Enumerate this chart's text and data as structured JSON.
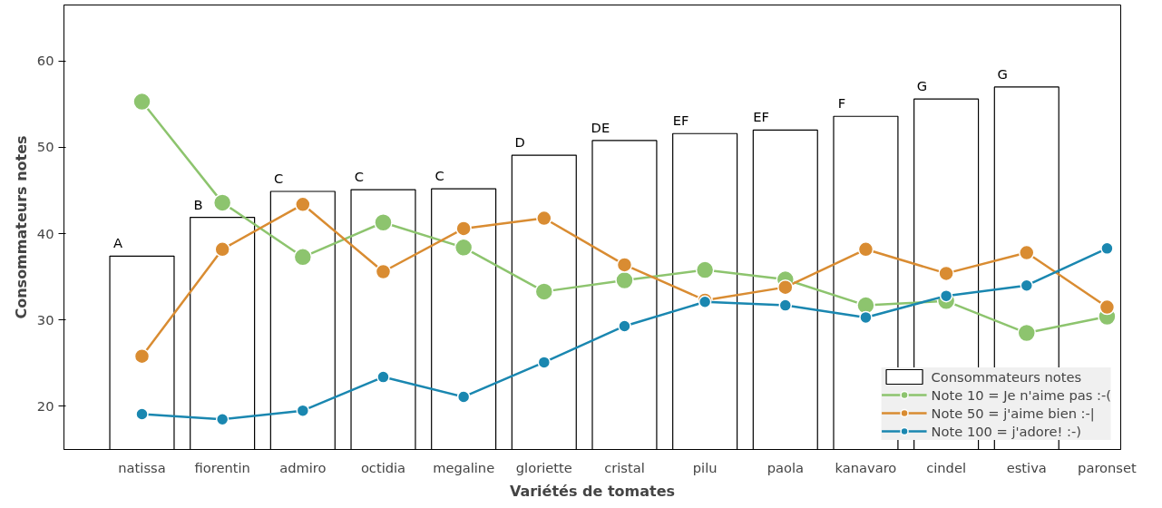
{
  "chart_data": {
    "type": "bar",
    "xlabel": "Variétés de tomates",
    "ylabel": "Consommateurs notes",
    "categories": [
      "natissa",
      "fiorentin",
      "admiro",
      "octidia",
      "megaline",
      "gloriette",
      "cristal",
      "pilu",
      "paola",
      "kanavaro",
      "cindel",
      "estiva",
      "paronset"
    ],
    "ylim": [
      15,
      66.5
    ],
    "yticks": [
      20,
      30,
      40,
      50,
      60
    ],
    "grid": false,
    "legend": "bottom right",
    "series": [
      {
        "name": "Consommateurs notes",
        "color": "#ffffff",
        "values": [
          37.4,
          41.9,
          44.9,
          45.1,
          45.2,
          49.1,
          50.8,
          51.6,
          52.0,
          53.6,
          55.6,
          57.0,
          null
        ]
      },
      {
        "name": "Note 10 = Je n'aime pas :-(",
        "type": "line",
        "marker": "circle",
        "color": "#8dc46e",
        "values": [
          55.3,
          43.6,
          37.3,
          41.3,
          38.4,
          33.3,
          34.6,
          35.8,
          34.7,
          31.7,
          32.2,
          28.5,
          30.4
        ]
      },
      {
        "name": "Note 50 = j'aime bien :-|",
        "type": "line",
        "marker": "circle",
        "color": "#d98c32",
        "values": [
          25.8,
          38.2,
          43.4,
          35.6,
          40.6,
          41.8,
          36.4,
          32.3,
          33.8,
          38.2,
          35.4,
          37.8,
          31.5
        ]
      },
      {
        "name": "Note 100 = j'adore! :-)",
        "type": "line",
        "marker": "circle",
        "color": "#1a87b0",
        "values": [
          19.1,
          18.5,
          19.5,
          23.4,
          21.1,
          25.1,
          29.3,
          32.1,
          31.7,
          30.3,
          32.8,
          34.0,
          38.3
        ]
      }
    ],
    "annotations": [
      {
        "text": "A",
        "x": "natissa",
        "y": 37.4
      },
      {
        "text": "B",
        "x": "fiorentin",
        "y": 41.9
      },
      {
        "text": "C",
        "x": "admiro",
        "y": 44.9
      },
      {
        "text": "C",
        "x": "octidia",
        "y": 45.1
      },
      {
        "text": "C",
        "x": "megaline",
        "y": 45.2
      },
      {
        "text": "D",
        "x": "gloriette",
        "y": 49.1
      },
      {
        "text": "DE",
        "x": "cristal",
        "y": 50.8
      },
      {
        "text": "EF",
        "x": "pilu",
        "y": 51.6
      },
      {
        "text": "EF",
        "x": "paola",
        "y": 52.0
      },
      {
        "text": "F",
        "x": "kanavaro",
        "y": 53.6
      },
      {
        "text": "G",
        "x": "cindel",
        "y": 55.6
      },
      {
        "text": "G",
        "x": "estiva",
        "y": 57.0
      }
    ]
  }
}
